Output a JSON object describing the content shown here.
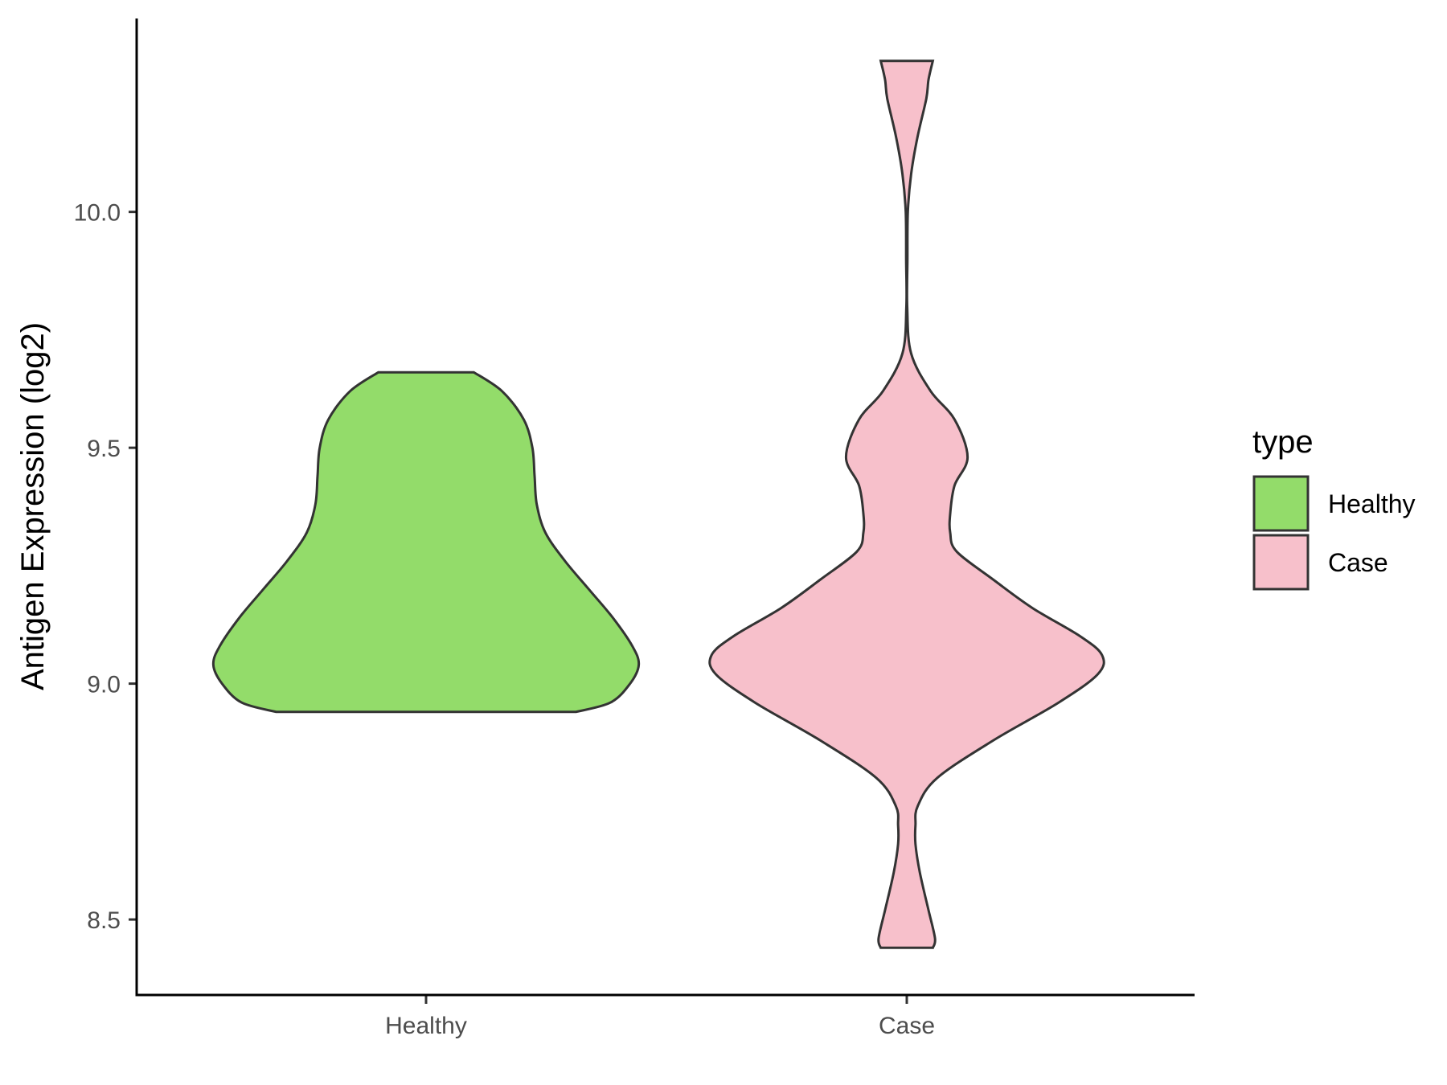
{
  "chart_data": {
    "type": "violin",
    "title": "",
    "xlabel": "",
    "ylabel": "Antigen Expression (log2)",
    "ylim": [
      8.34,
      10.41
    ],
    "yticks": [
      {
        "value": 8.5,
        "label": "8.5"
      },
      {
        "value": 9.0,
        "label": "9.0"
      },
      {
        "value": 9.5,
        "label": "9.5"
      },
      {
        "value": 10.0,
        "label": "10.0"
      }
    ],
    "categories": [
      "Healthy",
      "Case"
    ],
    "grid": false,
    "legend": {
      "title": "type",
      "position": "right",
      "entries": [
        {
          "label": "Healthy",
          "color": "#93dc6a"
        },
        {
          "label": "Case",
          "color": "#f7c0cb"
        }
      ]
    },
    "series": [
      {
        "category": "Healthy",
        "color": "#93dc6a",
        "min": 8.94,
        "max": 9.66,
        "density": [
          [
            8.94,
            0.69
          ],
          [
            8.96,
            0.85
          ],
          [
            9.0,
            0.94
          ],
          [
            9.04,
            0.98
          ],
          [
            9.08,
            0.95
          ],
          [
            9.14,
            0.86
          ],
          [
            9.2,
            0.75
          ],
          [
            9.26,
            0.64
          ],
          [
            9.32,
            0.55
          ],
          [
            9.38,
            0.51
          ],
          [
            9.44,
            0.5
          ],
          [
            9.5,
            0.49
          ],
          [
            9.56,
            0.45
          ],
          [
            9.62,
            0.35
          ],
          [
            9.66,
            0.22
          ]
        ]
      },
      {
        "category": "Case",
        "color": "#f7c0cb",
        "min": 8.44,
        "max": 10.32,
        "density": [
          [
            8.44,
            0.12
          ],
          [
            8.46,
            0.13
          ],
          [
            8.52,
            0.1
          ],
          [
            8.6,
            0.06
          ],
          [
            8.66,
            0.04
          ],
          [
            8.7,
            0.04
          ],
          [
            8.74,
            0.05
          ],
          [
            8.8,
            0.14
          ],
          [
            8.88,
            0.4
          ],
          [
            8.96,
            0.7
          ],
          [
            9.02,
            0.88
          ],
          [
            9.06,
            0.9
          ],
          [
            9.1,
            0.8
          ],
          [
            9.16,
            0.58
          ],
          [
            9.22,
            0.4
          ],
          [
            9.28,
            0.23
          ],
          [
            9.32,
            0.2
          ],
          [
            9.36,
            0.2
          ],
          [
            9.42,
            0.22
          ],
          [
            9.48,
            0.28
          ],
          [
            9.56,
            0.22
          ],
          [
            9.62,
            0.11
          ],
          [
            9.7,
            0.02
          ],
          [
            9.8,
            0.002
          ],
          [
            9.9,
            0.003
          ],
          [
            10.0,
            0.005
          ],
          [
            10.08,
            0.02
          ],
          [
            10.16,
            0.05
          ],
          [
            10.24,
            0.09
          ],
          [
            10.28,
            0.1
          ],
          [
            10.32,
            0.12
          ]
        ]
      }
    ]
  }
}
